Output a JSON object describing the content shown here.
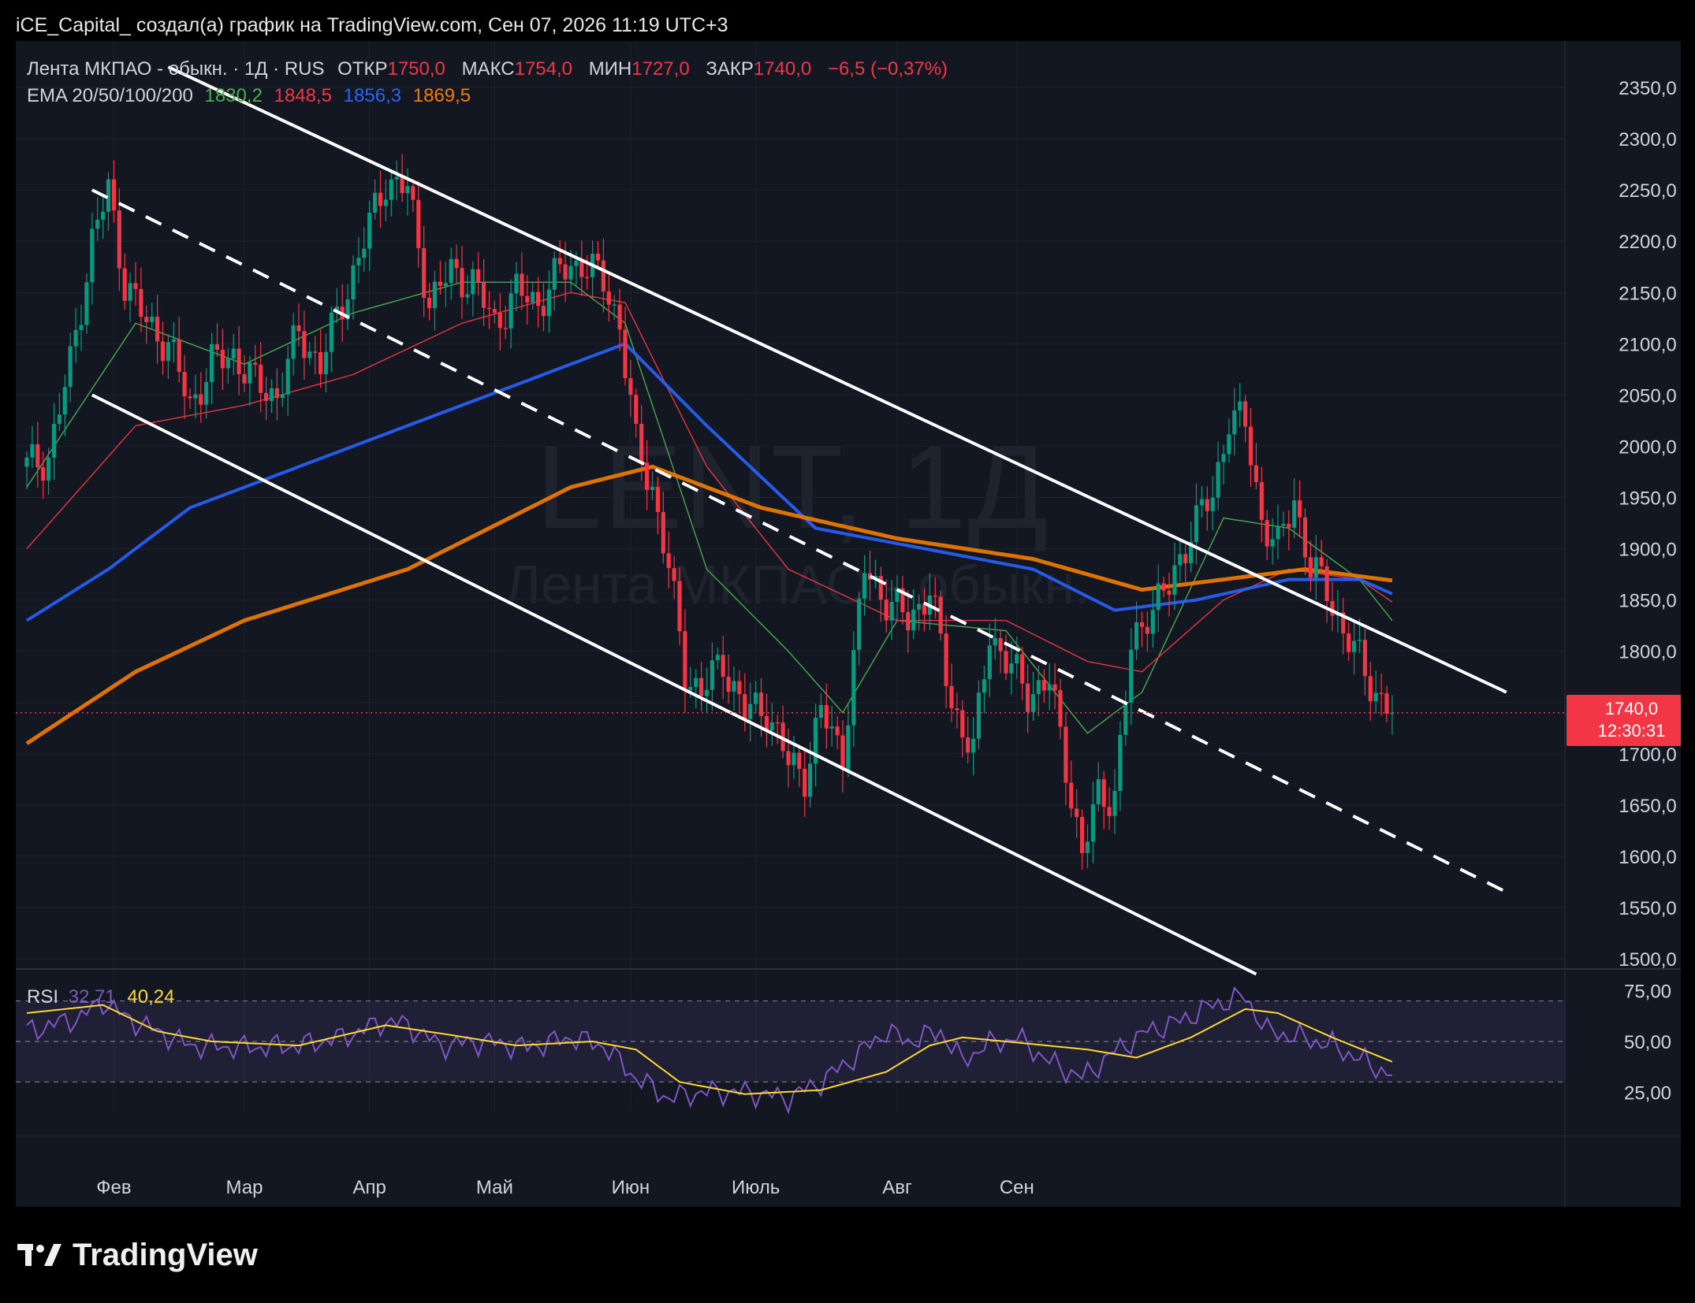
{
  "header_text": "iCE_Capital_ создал(а) график на TradingView.com, Сен 07, 2026 11:19 UTC+3",
  "legend": {
    "symbol": "Лента МКПАО - обыкн. · 1Д · RUS",
    "open_label": "ОТКР",
    "open": "1750,0",
    "high_label": "МАКС",
    "high": "1754,0",
    "low_label": "МИН",
    "low": "1727,0",
    "close_label": "ЗАКР",
    "close": "1740,0",
    "change": "−6,5 (−0,37%)",
    "ema_label": "EMA 20/50/100/200",
    "ema20": "1830,2",
    "ema50": "1848,5",
    "ema100": "1856,3",
    "ema200": "1869,5"
  },
  "rsi_legend": {
    "label": "RSI",
    "rsi": "32,71",
    "ma": "40,24"
  },
  "watermark": {
    "ticker": "LENT, 1Д",
    "name": "Лента МКПАО - обыкн."
  },
  "price_badge": {
    "price": "1740,0",
    "countdown": "12:30:31"
  },
  "brand": "TradingView",
  "colors": {
    "up": "#089981",
    "down": "#f23645",
    "ema20": "#4caf50",
    "ema50": "#f23645",
    "ema100": "#2962ff",
    "ema200": "#f57c00",
    "rsi": "#7e57c2",
    "rsi_ma": "#fdd835",
    "channel": "#ffffff",
    "background": "#131722"
  },
  "chart_data": [
    {
      "type": "candlestick",
      "title": "Лента МКПАО - обыкн. · 1Д · RUS",
      "x_axis_labels": [
        "Фев",
        "Мар",
        "Апр",
        "Май",
        "Июн",
        "Июль",
        "Авг",
        "Сен"
      ],
      "y_axis_ticks": [
        "2350,0",
        "2300,0",
        "2250,0",
        "2200,0",
        "2150,0",
        "2100,0",
        "2050,0",
        "2000,0",
        "1950,0",
        "1900,0",
        "1850,0",
        "1800,0",
        "1750,0",
        "1700,0",
        "1650,0",
        "1600,0",
        "1550,0",
        "1500,0"
      ],
      "ylim": [
        1490,
        2380
      ],
      "grid": true,
      "close_path": [
        {
          "i": 0,
          "v": 1980
        },
        {
          "i": 4,
          "v": 1990
        },
        {
          "i": 8,
          "v": 2080
        },
        {
          "i": 12,
          "v": 2200
        },
        {
          "i": 15,
          "v": 2250
        },
        {
          "i": 18,
          "v": 2160
        },
        {
          "i": 22,
          "v": 2120
        },
        {
          "i": 26,
          "v": 2100
        },
        {
          "i": 30,
          "v": 2040
        },
        {
          "i": 34,
          "v": 2080
        },
        {
          "i": 38,
          "v": 2090
        },
        {
          "i": 42,
          "v": 2060
        },
        {
          "i": 46,
          "v": 2050
        },
        {
          "i": 50,
          "v": 2110
        },
        {
          "i": 54,
          "v": 2080
        },
        {
          "i": 58,
          "v": 2140
        },
        {
          "i": 62,
          "v": 2200
        },
        {
          "i": 66,
          "v": 2260
        },
        {
          "i": 70,
          "v": 2250
        },
        {
          "i": 74,
          "v": 2140
        },
        {
          "i": 78,
          "v": 2170
        },
        {
          "i": 82,
          "v": 2160
        },
        {
          "i": 86,
          "v": 2120
        },
        {
          "i": 90,
          "v": 2150
        },
        {
          "i": 94,
          "v": 2140
        },
        {
          "i": 98,
          "v": 2170
        },
        {
          "i": 102,
          "v": 2180
        },
        {
          "i": 106,
          "v": 2160
        },
        {
          "i": 109,
          "v": 2120
        },
        {
          "i": 112,
          "v": 2000
        },
        {
          "i": 115,
          "v": 1960
        },
        {
          "i": 118,
          "v": 1880
        },
        {
          "i": 121,
          "v": 1780
        },
        {
          "i": 124,
          "v": 1760
        },
        {
          "i": 128,
          "v": 1790
        },
        {
          "i": 132,
          "v": 1740
        },
        {
          "i": 136,
          "v": 1745
        },
        {
          "i": 140,
          "v": 1690
        },
        {
          "i": 143,
          "v": 1680
        },
        {
          "i": 146,
          "v": 1740
        },
        {
          "i": 150,
          "v": 1700
        },
        {
          "i": 154,
          "v": 1880
        },
        {
          "i": 158,
          "v": 1850
        },
        {
          "i": 162,
          "v": 1830
        },
        {
          "i": 166,
          "v": 1860
        },
        {
          "i": 170,
          "v": 1750
        },
        {
          "i": 174,
          "v": 1700
        },
        {
          "i": 177,
          "v": 1820
        },
        {
          "i": 180,
          "v": 1790
        },
        {
          "i": 184,
          "v": 1760
        },
        {
          "i": 188,
          "v": 1770
        },
        {
          "i": 191,
          "v": 1690
        },
        {
          "i": 194,
          "v": 1600
        },
        {
          "i": 197,
          "v": 1660
        },
        {
          "i": 200,
          "v": 1660
        },
        {
          "i": 203,
          "v": 1800
        },
        {
          "i": 206,
          "v": 1840
        },
        {
          "i": 210,
          "v": 1860
        },
        {
          "i": 214,
          "v": 1920
        },
        {
          "i": 218,
          "v": 1950
        },
        {
          "i": 221,
          "v": 2030
        },
        {
          "i": 224,
          "v": 2020
        },
        {
          "i": 227,
          "v": 1930
        },
        {
          "i": 230,
          "v": 1900
        },
        {
          "i": 233,
          "v": 1950
        },
        {
          "i": 236,
          "v": 1880
        },
        {
          "i": 239,
          "v": 1860
        },
        {
          "i": 242,
          "v": 1820
        },
        {
          "i": 245,
          "v": 1790
        },
        {
          "i": 248,
          "v": 1760
        },
        {
          "i": 251,
          "v": 1740
        }
      ],
      "ema_series": [
        {
          "name": "EMA 20",
          "points": [
            [
              0,
              1960
            ],
            [
              20,
              2120
            ],
            [
              40,
              2080
            ],
            [
              60,
              2130
            ],
            [
              80,
              2160
            ],
            [
              100,
              2160
            ],
            [
              110,
              2120
            ],
            [
              125,
              1880
            ],
            [
              140,
              1800
            ],
            [
              150,
              1740
            ],
            [
              160,
              1830
            ],
            [
              180,
              1820
            ],
            [
              195,
              1720
            ],
            [
              205,
              1760
            ],
            [
              220,
              1930
            ],
            [
              232,
              1920
            ],
            [
              245,
              1870
            ],
            [
              251,
              1830
            ]
          ]
        },
        {
          "name": "EMA 50",
          "points": [
            [
              0,
              1900
            ],
            [
              20,
              2020
            ],
            [
              40,
              2040
            ],
            [
              60,
              2070
            ],
            [
              80,
              2120
            ],
            [
              100,
              2150
            ],
            [
              110,
              2140
            ],
            [
              125,
              1980
            ],
            [
              140,
              1880
            ],
            [
              160,
              1830
            ],
            [
              180,
              1830
            ],
            [
              195,
              1790
            ],
            [
              205,
              1780
            ],
            [
              220,
              1850
            ],
            [
              232,
              1880
            ],
            [
              245,
              1870
            ],
            [
              251,
              1848
            ]
          ]
        },
        {
          "name": "EMA 100",
          "points": [
            [
              0,
              1830
            ],
            [
              15,
              1880
            ],
            [
              30,
              1940
            ],
            [
              50,
              1980
            ],
            [
              70,
              2020
            ],
            [
              90,
              2060
            ],
            [
              110,
              2100
            ],
            [
              125,
              2020
            ],
            [
              145,
              1920
            ],
            [
              165,
              1900
            ],
            [
              185,
              1880
            ],
            [
              200,
              1840
            ],
            [
              215,
              1850
            ],
            [
              232,
              1870
            ],
            [
              245,
              1870
            ],
            [
              251,
              1856
            ]
          ]
        },
        {
          "name": "EMA 200",
          "points": [
            [
              0,
              1710
            ],
            [
              20,
              1780
            ],
            [
              40,
              1830
            ],
            [
              70,
              1880
            ],
            [
              100,
              1960
            ],
            [
              115,
              1980
            ],
            [
              135,
              1940
            ],
            [
              160,
              1910
            ],
            [
              185,
              1890
            ],
            [
              205,
              1860
            ],
            [
              220,
              1870
            ],
            [
              235,
              1880
            ],
            [
              251,
              1869
            ]
          ]
        }
      ],
      "channel_lines": [
        {
          "name": "upper",
          "style": "solid",
          "from": {
            "i": 26,
            "v": 2370
          },
          "to": {
            "i": 272,
            "v": 1760
          }
        },
        {
          "name": "middle",
          "style": "dashed",
          "from": {
            "i": 12,
            "v": 2250
          },
          "to": {
            "i": 272,
            "v": 1565
          }
        },
        {
          "name": "lower",
          "style": "solid",
          "from": {
            "i": 12,
            "v": 2050
          },
          "to": {
            "i": 226,
            "v": 1485
          }
        }
      ],
      "last_price": 1740.0
    },
    {
      "type": "line",
      "title": "RSI",
      "y_axis_ticks": [
        "75,00",
        "50,00",
        "25,00"
      ],
      "ylim": [
        15,
        85
      ],
      "band": [
        30,
        70
      ],
      "series": [
        {
          "name": "RSI",
          "points": [
            [
              0,
              55
            ],
            [
              10,
              62
            ],
            [
              14,
              70
            ],
            [
              18,
              62
            ],
            [
              24,
              55
            ],
            [
              30,
              48
            ],
            [
              40,
              47
            ],
            [
              50,
              48
            ],
            [
              58,
              52
            ],
            [
              66,
              60
            ],
            [
              70,
              58
            ],
            [
              76,
              48
            ],
            [
              84,
              50
            ],
            [
              92,
              47
            ],
            [
              100,
              52
            ],
            [
              106,
              48
            ],
            [
              112,
              32
            ],
            [
              118,
              22
            ],
            [
              124,
              25
            ],
            [
              132,
              25
            ],
            [
              140,
              22
            ],
            [
              146,
              30
            ],
            [
              152,
              42
            ],
            [
              158,
              55
            ],
            [
              162,
              50
            ],
            [
              168,
              55
            ],
            [
              172,
              40
            ],
            [
              176,
              48
            ],
            [
              182,
              52
            ],
            [
              188,
              40
            ],
            [
              194,
              32
            ],
            [
              200,
              45
            ],
            [
              206,
              55
            ],
            [
              212,
              60
            ],
            [
              218,
              68
            ],
            [
              224,
              72
            ],
            [
              228,
              55
            ],
            [
              234,
              52
            ],
            [
              240,
              48
            ],
            [
              246,
              40
            ],
            [
              251,
              33
            ]
          ]
        },
        {
          "name": "RSI MA",
          "points": [
            [
              0,
              64
            ],
            [
              14,
              68
            ],
            [
              24,
              55
            ],
            [
              34,
              50
            ],
            [
              50,
              48
            ],
            [
              66,
              58
            ],
            [
              76,
              54
            ],
            [
              90,
              48
            ],
            [
              104,
              50
            ],
            [
              112,
              46
            ],
            [
              120,
              30
            ],
            [
              132,
              24
            ],
            [
              146,
              26
            ],
            [
              158,
              35
            ],
            [
              166,
              48
            ],
            [
              172,
              52
            ],
            [
              180,
              50
            ],
            [
              195,
              46
            ],
            [
              204,
              42
            ],
            [
              214,
              52
            ],
            [
              224,
              66
            ],
            [
              230,
              64
            ],
            [
              240,
              52
            ],
            [
              251,
              40
            ]
          ]
        }
      ]
    }
  ]
}
